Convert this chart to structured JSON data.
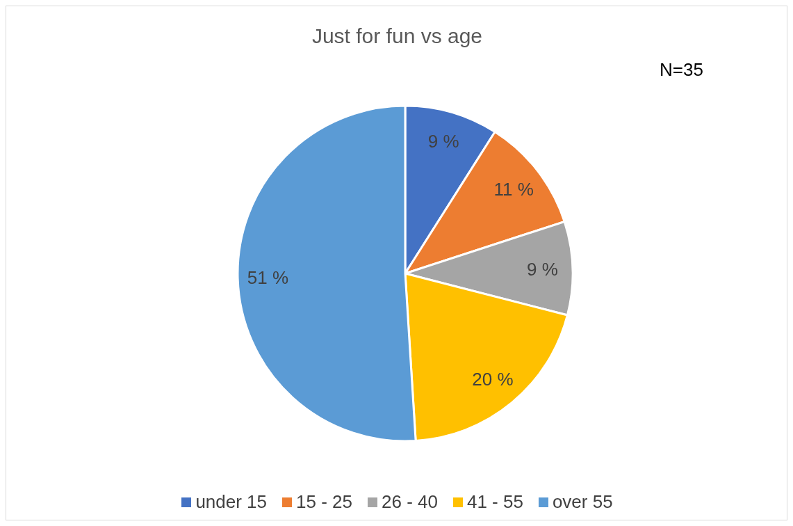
{
  "chart_data": {
    "type": "pie",
    "title": "Just for fun vs age",
    "categories": [
      "under 15",
      "15 - 25",
      "26 - 40",
      "41 - 55",
      "over 55"
    ],
    "values": [
      9,
      11,
      9,
      20,
      51
    ],
    "colors": [
      "#4472c4",
      "#ed7d31",
      "#a5a5a5",
      "#ffc000",
      "#5b9bd5"
    ],
    "value_labels": [
      "9 %",
      "11 %",
      "9 %",
      "20 %",
      "51 %"
    ],
    "annotations": [
      "N=35"
    ],
    "legend": "bottom"
  }
}
